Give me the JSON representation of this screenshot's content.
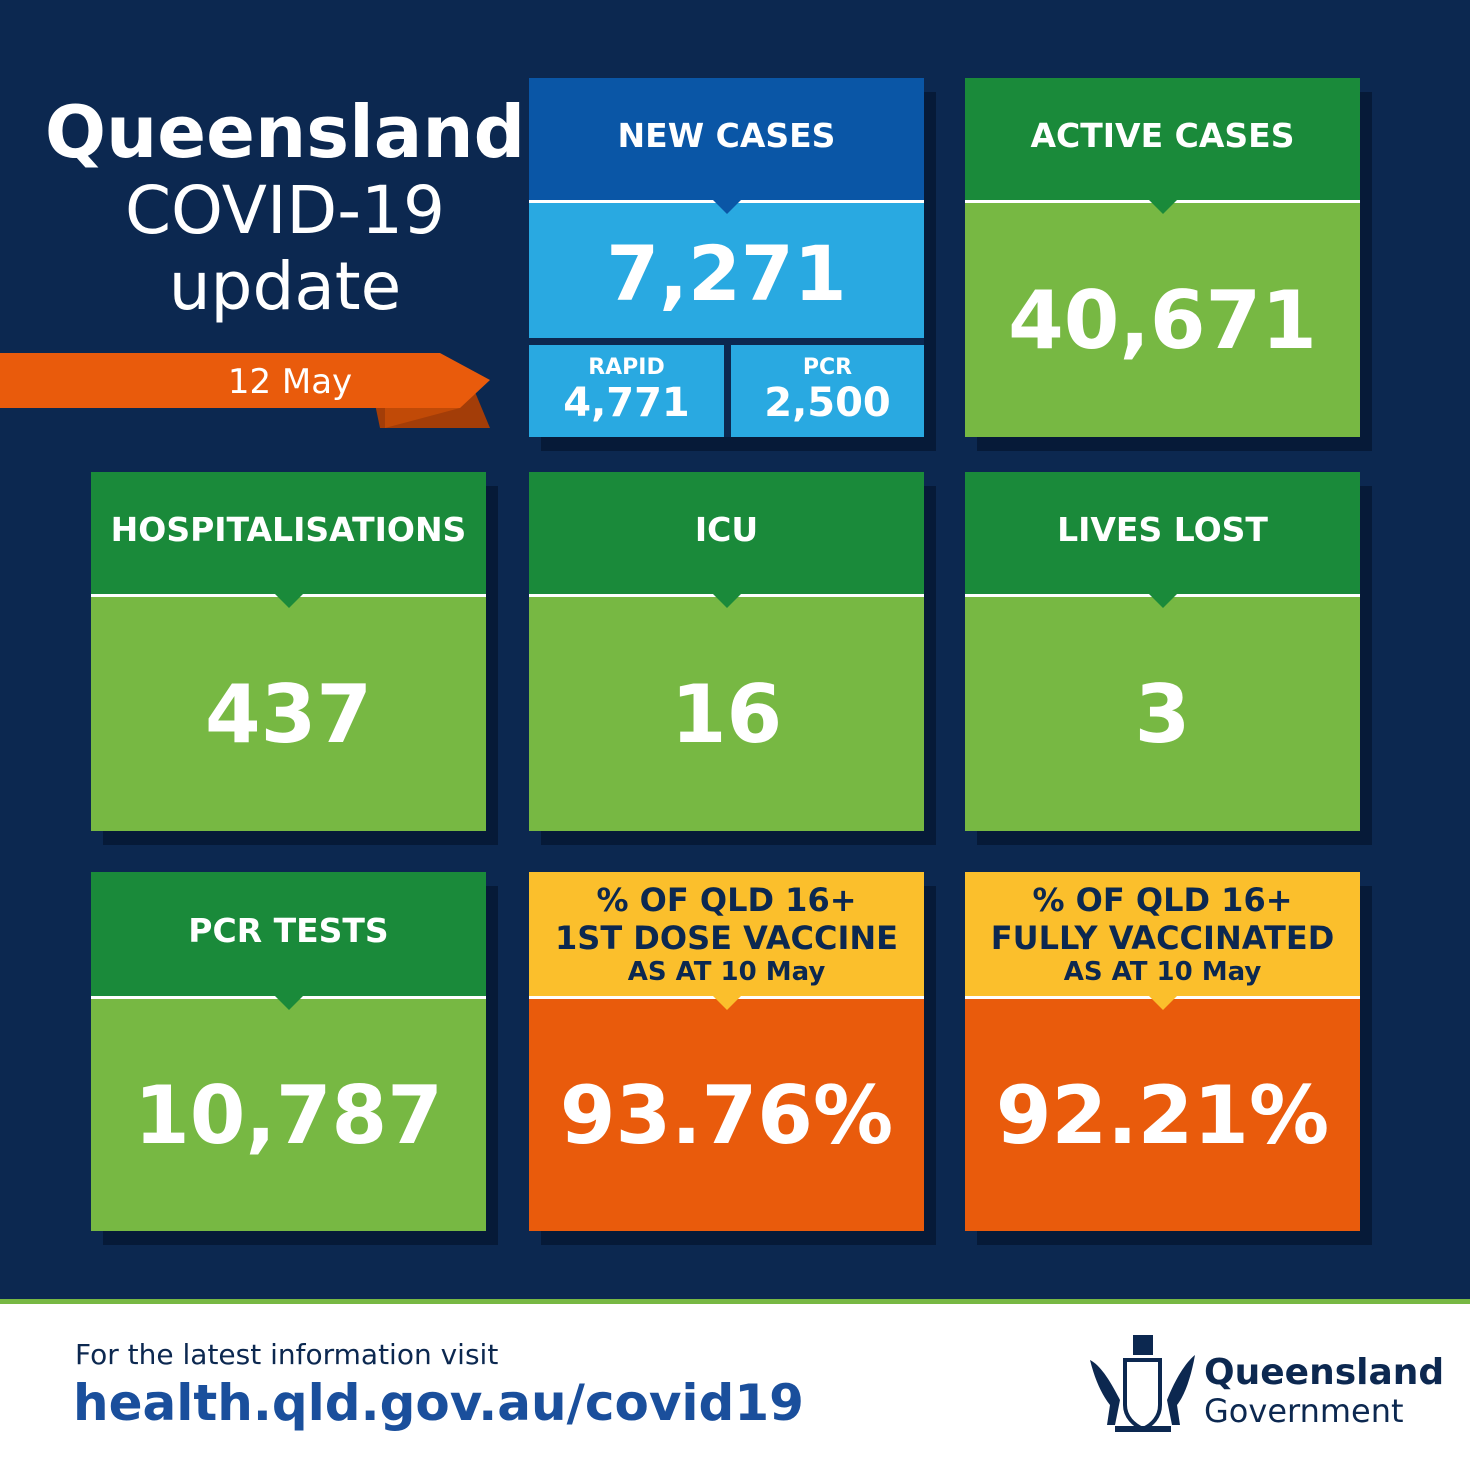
{
  "header": {
    "title": "Queensland",
    "subtitle": "COVID-19",
    "subtitle2": "update",
    "date": "12 May"
  },
  "cards": [
    {
      "label": [
        "NEW CASES"
      ],
      "value": "7,271",
      "breakdown": [
        {
          "label": "RAPID",
          "value": "4,771"
        },
        {
          "label": "PCR",
          "value": "2,500"
        }
      ]
    },
    {
      "label": [
        "ACTIVE CASES"
      ],
      "value": "40,671"
    },
    {
      "label": [
        "HOSPITALISATIONS"
      ],
      "value": "437"
    },
    {
      "label": [
        "ICU"
      ],
      "value": "16"
    },
    {
      "label": [
        "LIVES LOST"
      ],
      "value": "3"
    },
    {
      "label": [
        "PCR TESTS"
      ],
      "value": "10,787"
    },
    {
      "label": [
        "% OF QLD 16+",
        "1ST DOSE VACCINE",
        "AS AT 10 May"
      ],
      "value": "93.76%"
    },
    {
      "label": [
        "% OF QLD 16+",
        "FULLY VACCINATED",
        "AS AT 10 May"
      ],
      "value": "92.21%"
    }
  ],
  "footer": {
    "intro": "For the latest information visit",
    "url": "health.qld.gov.au/covid19",
    "logo_line1": "Queensland",
    "logo_line2": "Government"
  }
}
